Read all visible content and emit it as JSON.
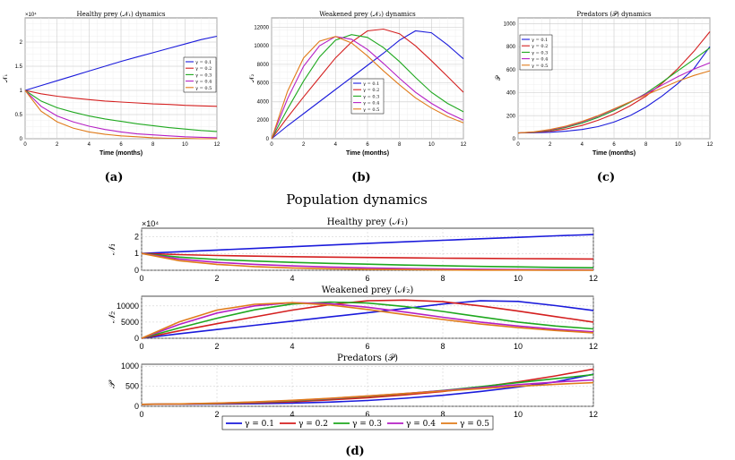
{
  "figure_title": "Population dynamics",
  "colors": {
    "0.1": "#1a1adb",
    "0.2": "#d41f1f",
    "0.3": "#1fa81f",
    "0.4": "#b51fc4",
    "0.5": "#e07b1a"
  },
  "legend_labels": [
    "γ = 0.1",
    "γ = 0.2",
    "γ = 0.3",
    "γ = 0.4",
    "γ = 0.5"
  ],
  "captions": [
    "(a)",
    "(b)",
    "(c)",
    "(d)"
  ],
  "chart_data": [
    {
      "id": "a",
      "type": "line",
      "title": "Healthy prey (𝒩₁) dynamics",
      "xlabel": "Time (months)",
      "ylabel": "𝒩₁",
      "xlim": [
        0,
        12
      ],
      "ylim": [
        0,
        2.5
      ],
      "xticks": [
        0,
        2,
        4,
        6,
        8,
        10,
        12
      ],
      "yticks": [
        0,
        0.5,
        1,
        1.5,
        2
      ],
      "ytick_labels": [
        "0",
        "0.5",
        "1",
        "1.5",
        "2"
      ],
      "yexp": "×10⁴",
      "legend": "center-right",
      "x": [
        0,
        1,
        2,
        3,
        4,
        5,
        6,
        7,
        8,
        9,
        10,
        11,
        12
      ],
      "series": [
        {
          "name": "γ = 0.1",
          "values": [
            1.0,
            1.1,
            1.2,
            1.3,
            1.4,
            1.5,
            1.6,
            1.69,
            1.78,
            1.87,
            1.96,
            2.05,
            2.12
          ]
        },
        {
          "name": "γ = 0.2",
          "values": [
            1.0,
            0.93,
            0.88,
            0.84,
            0.81,
            0.78,
            0.76,
            0.74,
            0.72,
            0.71,
            0.69,
            0.68,
            0.67
          ]
        },
        {
          "name": "γ = 0.3",
          "values": [
            1.0,
            0.78,
            0.64,
            0.55,
            0.47,
            0.41,
            0.36,
            0.31,
            0.27,
            0.23,
            0.2,
            0.17,
            0.15
          ]
        },
        {
          "name": "γ = 0.4",
          "values": [
            1.0,
            0.67,
            0.47,
            0.35,
            0.26,
            0.19,
            0.14,
            0.1,
            0.08,
            0.06,
            0.04,
            0.03,
            0.02
          ]
        },
        {
          "name": "γ = 0.5",
          "values": [
            1.0,
            0.57,
            0.35,
            0.22,
            0.14,
            0.09,
            0.06,
            0.04,
            0.02,
            0.01,
            0.01,
            0.0,
            0.0
          ]
        }
      ]
    },
    {
      "id": "b",
      "type": "line",
      "title": "Weakened prey (𝒩₂) dynamics",
      "xlabel": "Time (months)",
      "ylabel": "𝒩₂",
      "xlim": [
        0,
        12
      ],
      "ylim": [
        0,
        13000
      ],
      "xticks": [
        0,
        2,
        4,
        6,
        8,
        10,
        12
      ],
      "yticks": [
        0,
        2000,
        4000,
        6000,
        8000,
        10000,
        12000
      ],
      "ytick_labels": [
        "0",
        "2000",
        "4000",
        "6000",
        "8000",
        "10000",
        "12000"
      ],
      "legend": "center",
      "x": [
        0,
        1,
        2,
        3,
        4,
        5,
        6,
        7,
        8,
        9,
        10,
        11,
        12
      ],
      "series": [
        {
          "name": "γ = 0.1",
          "values": [
            0,
            1400,
            2700,
            4000,
            5300,
            6600,
            7900,
            9200,
            10600,
            11600,
            11400,
            10100,
            8600
          ]
        },
        {
          "name": "γ = 0.2",
          "values": [
            0,
            2300,
            4500,
            6600,
            8700,
            10400,
            11600,
            11800,
            11300,
            10000,
            8400,
            6700,
            5000
          ]
        },
        {
          "name": "γ = 0.3",
          "values": [
            0,
            3200,
            6200,
            8800,
            10600,
            11200,
            10900,
            9800,
            8300,
            6600,
            5000,
            3800,
            2900
          ]
        },
        {
          "name": "γ = 0.4",
          "values": [
            0,
            4300,
            7800,
            10000,
            11000,
            10700,
            9600,
            8100,
            6500,
            5000,
            3800,
            2800,
            2000
          ]
        },
        {
          "name": "γ = 0.5",
          "values": [
            0,
            5100,
            8700,
            10500,
            11000,
            10300,
            8900,
            7300,
            5800,
            4400,
            3300,
            2400,
            1700
          ]
        }
      ]
    },
    {
      "id": "c",
      "type": "line",
      "title": "Predators (𝒫) dynamics",
      "xlabel": "Time (months)",
      "ylabel": "𝒫",
      "xlim": [
        0,
        12
      ],
      "ylim": [
        0,
        1050
      ],
      "xticks": [
        0,
        2,
        4,
        6,
        8,
        10,
        12
      ],
      "yticks": [
        0,
        200,
        400,
        600,
        800,
        1000
      ],
      "ytick_labels": [
        "0",
        "200",
        "400",
        "600",
        "800",
        "1000"
      ],
      "legend": "top-left",
      "x": [
        0,
        1,
        2,
        3,
        4,
        5,
        6,
        7,
        8,
        9,
        10,
        11,
        12
      ],
      "series": [
        {
          "name": "γ = 0.1",
          "values": [
            50,
            52,
            56,
            65,
            80,
            105,
            145,
            200,
            275,
            370,
            480,
            610,
            800
          ]
        },
        {
          "name": "γ = 0.2",
          "values": [
            50,
            55,
            65,
            85,
            115,
            160,
            215,
            285,
            370,
            480,
            610,
            760,
            930
          ]
        },
        {
          "name": "γ = 0.3",
          "values": [
            50,
            57,
            72,
            98,
            135,
            185,
            245,
            315,
            395,
            490,
            590,
            690,
            790
          ]
        },
        {
          "name": "γ = 0.4",
          "values": [
            50,
            58,
            76,
            105,
            145,
            195,
            255,
            320,
            390,
            465,
            540,
            605,
            660
          ]
        },
        {
          "name": "γ = 0.5",
          "values": [
            50,
            60,
            80,
            110,
            150,
            200,
            260,
            320,
            380,
            440,
            500,
            550,
            590
          ]
        }
      ]
    },
    {
      "id": "d1",
      "type": "line",
      "title": "Healthy prey (𝒩₁)",
      "ylabel": "𝒩₁",
      "xlim": [
        0,
        12
      ],
      "ylim": [
        0,
        2.5
      ],
      "xticks": [
        0,
        2,
        4,
        6,
        8,
        10,
        12
      ],
      "yticks": [
        0,
        1,
        2
      ],
      "ytick_labels": [
        "0",
        "1",
        "2"
      ],
      "yexp": "×10⁴",
      "x": [
        0,
        1,
        2,
        3,
        4,
        5,
        6,
        7,
        8,
        9,
        10,
        11,
        12
      ],
      "series": [
        {
          "name": "γ = 0.1",
          "values": [
            1.0,
            1.1,
            1.2,
            1.3,
            1.4,
            1.5,
            1.6,
            1.69,
            1.78,
            1.87,
            1.96,
            2.05,
            2.12
          ]
        },
        {
          "name": "γ = 0.2",
          "values": [
            1.0,
            0.93,
            0.88,
            0.84,
            0.81,
            0.78,
            0.76,
            0.74,
            0.72,
            0.71,
            0.69,
            0.68,
            0.67
          ]
        },
        {
          "name": "γ = 0.3",
          "values": [
            1.0,
            0.78,
            0.64,
            0.55,
            0.47,
            0.41,
            0.36,
            0.31,
            0.27,
            0.23,
            0.2,
            0.17,
            0.15
          ]
        },
        {
          "name": "γ = 0.4",
          "values": [
            1.0,
            0.67,
            0.47,
            0.35,
            0.26,
            0.19,
            0.14,
            0.1,
            0.08,
            0.06,
            0.04,
            0.03,
            0.02
          ]
        },
        {
          "name": "γ = 0.5",
          "values": [
            1.0,
            0.57,
            0.35,
            0.22,
            0.14,
            0.09,
            0.06,
            0.04,
            0.02,
            0.01,
            0.01,
            0.0,
            0.0
          ]
        }
      ]
    },
    {
      "id": "d2",
      "type": "line",
      "title": "Weakened prey (𝒩₂)",
      "ylabel": "𝒩₂",
      "xlim": [
        0,
        12
      ],
      "ylim": [
        0,
        13000
      ],
      "xticks": [
        0,
        2,
        4,
        6,
        8,
        10,
        12
      ],
      "yticks": [
        0,
        5000,
        10000
      ],
      "ytick_labels": [
        "0",
        "5000",
        "10000"
      ],
      "x": [
        0,
        1,
        2,
        3,
        4,
        5,
        6,
        7,
        8,
        9,
        10,
        11,
        12
      ],
      "series": [
        {
          "name": "γ = 0.1",
          "values": [
            0,
            1400,
            2700,
            4000,
            5300,
            6600,
            7900,
            9200,
            10600,
            11600,
            11400,
            10100,
            8600
          ]
        },
        {
          "name": "γ = 0.2",
          "values": [
            0,
            2300,
            4500,
            6600,
            8700,
            10400,
            11600,
            11800,
            11300,
            10000,
            8400,
            6700,
            5000
          ]
        },
        {
          "name": "γ = 0.3",
          "values": [
            0,
            3200,
            6200,
            8800,
            10600,
            11200,
            10900,
            9800,
            8300,
            6600,
            5000,
            3800,
            2900
          ]
        },
        {
          "name": "γ = 0.4",
          "values": [
            0,
            4300,
            7800,
            10000,
            11000,
            10700,
            9600,
            8100,
            6500,
            5000,
            3800,
            2800,
            2000
          ]
        },
        {
          "name": "γ = 0.5",
          "values": [
            0,
            5100,
            8700,
            10500,
            11000,
            10300,
            8900,
            7300,
            5800,
            4400,
            3300,
            2400,
            1700
          ]
        }
      ]
    },
    {
      "id": "d3",
      "type": "line",
      "title": "Predators (𝒫)",
      "ylabel": "𝒫",
      "xlim": [
        0,
        12
      ],
      "ylim": [
        0,
        1050
      ],
      "xticks": [
        0,
        2,
        4,
        6,
        8,
        10,
        12
      ],
      "yticks": [
        0,
        500,
        1000
      ],
      "ytick_labels": [
        "0",
        "500",
        "1000"
      ],
      "x": [
        0,
        1,
        2,
        3,
        4,
        5,
        6,
        7,
        8,
        9,
        10,
        11,
        12
      ],
      "series": [
        {
          "name": "γ = 0.1",
          "values": [
            50,
            52,
            56,
            65,
            80,
            105,
            145,
            200,
            275,
            370,
            480,
            610,
            800
          ]
        },
        {
          "name": "γ = 0.2",
          "values": [
            50,
            55,
            65,
            85,
            115,
            160,
            215,
            285,
            370,
            480,
            610,
            760,
            930
          ]
        },
        {
          "name": "γ = 0.3",
          "values": [
            50,
            57,
            72,
            98,
            135,
            185,
            245,
            315,
            395,
            490,
            590,
            690,
            790
          ]
        },
        {
          "name": "γ = 0.4",
          "values": [
            50,
            58,
            76,
            105,
            145,
            195,
            255,
            320,
            390,
            465,
            540,
            605,
            660
          ]
        },
        {
          "name": "γ = 0.5",
          "values": [
            50,
            60,
            80,
            110,
            150,
            200,
            260,
            320,
            380,
            440,
            500,
            550,
            590
          ]
        }
      ]
    }
  ]
}
